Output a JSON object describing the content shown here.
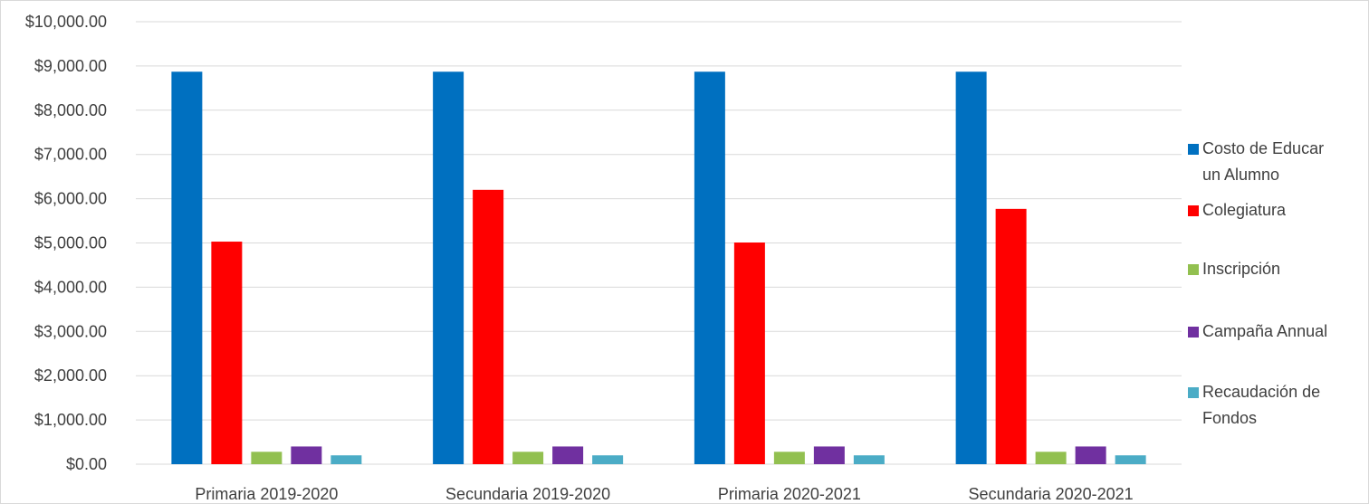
{
  "chart_data": {
    "type": "bar",
    "categories": [
      "Primaria 2019-2020",
      "Secundaria 2019-2020",
      "Primaria 2020-2021",
      "Secundaria 2020-2021"
    ],
    "series": [
      {
        "name": "Costo de Educar un Alumno",
        "name_lines": [
          "Costo de Educar",
          "un Alumno"
        ],
        "color": "#0070C0",
        "values": [
          8870,
          8870,
          8870,
          8870
        ]
      },
      {
        "name": "Colegiatura",
        "name_lines": [
          "Colegiatura"
        ],
        "color": "#FF0000",
        "values": [
          5030,
          6200,
          5010,
          5770
        ]
      },
      {
        "name": "Inscripción",
        "name_lines": [
          "Inscripción"
        ],
        "color": "#92C050",
        "values": [
          280,
          280,
          280,
          280
        ]
      },
      {
        "name": "Campaña Annual",
        "name_lines": [
          "Campaña Annual"
        ],
        "color": "#7030A0",
        "values": [
          400,
          400,
          400,
          400
        ]
      },
      {
        "name": "Recaudación de Fondos",
        "name_lines": [
          "Recaudación de",
          "Fondos"
        ],
        "color": "#4BACC6",
        "values": [
          200,
          200,
          200,
          200
        ]
      }
    ],
    "y_ticks": [
      "$0.00",
      "$1,000.00",
      "$2,000.00",
      "$3,000.00",
      "$4,000.00",
      "$5,000.00",
      "$6,000.00",
      "$7,000.00",
      "$8,000.00",
      "$9,000.00",
      "$10,000.00"
    ],
    "ylim": [
      0,
      10000
    ],
    "grid": true,
    "gridline_color": "#d9d9d9",
    "legend_position": "right"
  }
}
